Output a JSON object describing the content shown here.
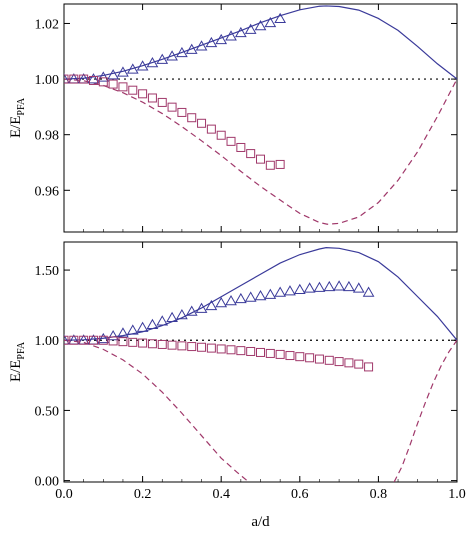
{
  "chart_data": [
    {
      "type": "line",
      "panel": "top",
      "xlabel": "",
      "ylabel_main": "E/E",
      "ylabel_sub": "PFA",
      "xlim": [
        0,
        1
      ],
      "ylim": [
        0.945,
        1.027
      ],
      "xticks": [
        {
          "value": 0.0,
          "label": "0.0"
        },
        {
          "value": 0.2,
          "label": "0.2"
        },
        {
          "value": 0.4,
          "label": "0.4"
        },
        {
          "value": 0.6,
          "label": "0.6"
        },
        {
          "value": 0.8,
          "label": "0.8"
        },
        {
          "value": 1.0,
          "label": "1.0"
        }
      ],
      "show_xtick_labels": false,
      "yticks": [
        {
          "value": 0.96,
          "label": "0.96"
        },
        {
          "value": 0.98,
          "label": "0.98"
        },
        {
          "value": 1.0,
          "label": "1.00"
        },
        {
          "value": 1.02,
          "label": "1.02"
        }
      ],
      "grid": false,
      "reference_line": 1.0,
      "series": [
        {
          "style": "solid",
          "color": "#3a3a9a",
          "x": [
            0,
            0.05,
            0.1,
            0.15,
            0.2,
            0.25,
            0.3,
            0.35,
            0.4,
            0.45,
            0.5,
            0.55,
            0.6,
            0.65,
            0.667,
            0.7,
            0.75,
            0.8,
            0.85,
            0.9,
            0.95,
            1.0
          ],
          "y": [
            1.0,
            1.0003,
            1.0013,
            1.0028,
            1.0048,
            1.0071,
            1.0096,
            1.0122,
            1.0148,
            1.0174,
            1.0203,
            1.0228,
            1.0249,
            1.0262,
            1.0263,
            1.0261,
            1.0248,
            1.0218,
            1.0175,
            1.0117,
            1.0055,
            1.0
          ]
        },
        {
          "style": "dashed",
          "color": "#a0386a",
          "x": [
            0,
            0.05,
            0.1,
            0.15,
            0.2,
            0.25,
            0.3,
            0.35,
            0.4,
            0.45,
            0.5,
            0.55,
            0.6,
            0.65,
            0.67,
            0.7,
            0.75,
            0.8,
            0.85,
            0.9,
            0.95,
            1.0
          ],
          "y": [
            1.0,
            0.9994,
            0.9977,
            0.9951,
            0.9917,
            0.9876,
            0.9829,
            0.9778,
            0.9725,
            0.9668,
            0.9614,
            0.9565,
            0.9517,
            0.9484,
            0.9478,
            0.9481,
            0.9504,
            0.9556,
            0.9636,
            0.9739,
            0.9865,
            1.0
          ]
        },
        {
          "style": "triangle",
          "color": "#3a3a9a",
          "x": [
            0.0,
            0.025,
            0.05,
            0.075,
            0.1,
            0.125,
            0.15,
            0.175,
            0.2,
            0.225,
            0.25,
            0.275,
            0.3,
            0.325,
            0.35,
            0.375,
            0.4,
            0.425,
            0.45,
            0.475,
            0.5,
            0.525,
            0.55
          ],
          "y": [
            1.0,
            1.0,
            1.0,
            1.0,
            1.0006,
            1.0014,
            1.0024,
            1.0035,
            1.0046,
            1.0058,
            1.007,
            1.0082,
            1.0094,
            1.0106,
            1.0118,
            1.013,
            1.0141,
            1.0154,
            1.0166,
            1.0178,
            1.0191,
            1.0202,
            1.0217
          ]
        },
        {
          "style": "square",
          "color": "#a0386a",
          "x": [
            0.0,
            0.025,
            0.05,
            0.075,
            0.1,
            0.125,
            0.15,
            0.175,
            0.2,
            0.225,
            0.25,
            0.275,
            0.3,
            0.325,
            0.35,
            0.375,
            0.4,
            0.425,
            0.45,
            0.475,
            0.5,
            0.525,
            0.55
          ],
          "y": [
            1.0,
            1.0,
            1.0,
            0.9995,
            0.999,
            0.9982,
            0.9972,
            0.996,
            0.9947,
            0.9932,
            0.9916,
            0.9899,
            0.988,
            0.9861,
            0.9841,
            0.982,
            0.9798,
            0.9776,
            0.9754,
            0.9732,
            0.9712,
            0.969,
            0.9693
          ]
        }
      ]
    },
    {
      "type": "line",
      "panel": "bottom",
      "xlabel": "a/d",
      "ylabel_main": "E/E",
      "ylabel_sub": "PFA",
      "xlim": [
        0,
        1
      ],
      "ylim": [
        -0.01,
        1.7
      ],
      "xticks": [
        {
          "value": 0.0,
          "label": "0.0"
        },
        {
          "value": 0.2,
          "label": "0.2"
        },
        {
          "value": 0.4,
          "label": "0.4"
        },
        {
          "value": 0.6,
          "label": "0.6"
        },
        {
          "value": 0.8,
          "label": "0.8"
        },
        {
          "value": 1.0,
          "label": "1.0"
        }
      ],
      "show_xtick_labels": true,
      "yticks": [
        {
          "value": 0.0,
          "label": "0.00"
        },
        {
          "value": 0.5,
          "label": "0.50"
        },
        {
          "value": 1.0,
          "label": "1.00"
        },
        {
          "value": 1.5,
          "label": "1.50"
        }
      ],
      "grid": false,
      "reference_line": 1.0,
      "series": [
        {
          "style": "solid",
          "color": "#3a3a9a",
          "x": [
            0,
            0.05,
            0.1,
            0.15,
            0.2,
            0.25,
            0.3,
            0.35,
            0.4,
            0.45,
            0.5,
            0.55,
            0.6,
            0.65,
            0.667,
            0.7,
            0.75,
            0.8,
            0.85,
            0.9,
            0.95,
            1.0
          ],
          "y": [
            1.0,
            1.003,
            1.014,
            1.033,
            1.06,
            1.105,
            1.16,
            1.23,
            1.31,
            1.39,
            1.47,
            1.55,
            1.61,
            1.65,
            1.66,
            1.655,
            1.625,
            1.56,
            1.45,
            1.31,
            1.17,
            1.0
          ]
        },
        {
          "style": "dashed",
          "color": "#a0386a",
          "x": [
            0,
            0.05,
            0.1,
            0.15,
            0.2,
            0.25,
            0.3,
            0.35,
            0.4,
            0.44,
            0.47
          ],
          "y": [
            1.0,
            0.985,
            0.935,
            0.86,
            0.76,
            0.63,
            0.48,
            0.32,
            0.16,
            0.06,
            -0.01
          ],
          "x2": [
            0.84,
            0.86,
            0.88,
            0.9,
            0.92,
            0.94,
            0.96,
            0.98,
            1.0
          ],
          "y2": [
            -0.01,
            0.1,
            0.25,
            0.41,
            0.56,
            0.7,
            0.82,
            0.92,
            1.0
          ]
        },
        {
          "style": "triangle",
          "color": "#3a3a9a",
          "x": [
            0.0,
            0.025,
            0.05,
            0.075,
            0.1,
            0.125,
            0.15,
            0.175,
            0.2,
            0.225,
            0.25,
            0.275,
            0.3,
            0.325,
            0.35,
            0.375,
            0.4,
            0.425,
            0.45,
            0.475,
            0.5,
            0.525,
            0.55,
            0.575,
            0.6,
            0.625,
            0.65,
            0.675,
            0.7,
            0.725,
            0.75,
            0.775
          ],
          "y": [
            1.0,
            1.0,
            1.0,
            1.0,
            1.01,
            1.03,
            1.05,
            1.07,
            1.09,
            1.11,
            1.135,
            1.16,
            1.18,
            1.205,
            1.225,
            1.245,
            1.265,
            1.28,
            1.295,
            1.305,
            1.315,
            1.325,
            1.34,
            1.35,
            1.36,
            1.37,
            1.375,
            1.38,
            1.385,
            1.38,
            1.37,
            1.34
          ]
        },
        {
          "style": "square",
          "color": "#a0386a",
          "x": [
            0.0,
            0.025,
            0.05,
            0.075,
            0.1,
            0.125,
            0.15,
            0.175,
            0.2,
            0.225,
            0.25,
            0.275,
            0.3,
            0.325,
            0.35,
            0.375,
            0.4,
            0.425,
            0.45,
            0.475,
            0.5,
            0.525,
            0.55,
            0.575,
            0.6,
            0.625,
            0.65,
            0.675,
            0.7,
            0.725,
            0.75,
            0.775
          ],
          "y": [
            1.0,
            1.0,
            1.0,
            1.0,
            1.0,
            0.995,
            0.99,
            0.985,
            0.98,
            0.975,
            0.97,
            0.965,
            0.96,
            0.955,
            0.95,
            0.944,
            0.938,
            0.932,
            0.926,
            0.92,
            0.913,
            0.906,
            0.899,
            0.891,
            0.883,
            0.875,
            0.866,
            0.857,
            0.848,
            0.839,
            0.83,
            0.81
          ]
        }
      ]
    }
  ]
}
